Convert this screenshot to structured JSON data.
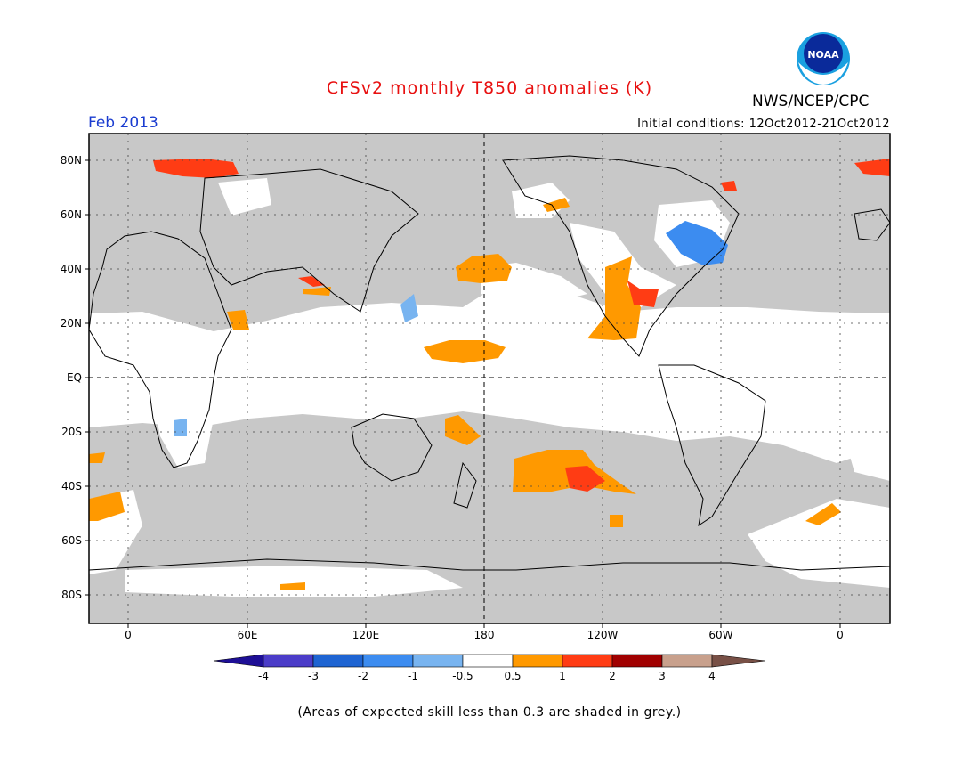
{
  "title": "CFSv2 monthly T850 anomalies (K)",
  "organization": "NWS/NCEP/CPC",
  "logo_text": "NOAA",
  "valid_month": "Feb 2013",
  "initial_conditions": "Initial conditions: 12Oct2012-21Oct2012",
  "footnote": "(Areas of expected skill less than 0.3 are shaded in grey.)",
  "latitude_labels": [
    "80N",
    "60N",
    "40N",
    "20N",
    "EQ",
    "20S",
    "40S",
    "60S",
    "80S"
  ],
  "longitude_labels": [
    "0",
    "60E",
    "120E",
    "180",
    "120W",
    "60W",
    "0"
  ],
  "colorbar": {
    "labels": [
      "-4",
      "-3",
      "-2",
      "-1",
      "-0.5",
      "0.5",
      "1",
      "2",
      "3",
      "4"
    ],
    "colors": [
      "#1e0f96",
      "#4b3cc8",
      "#1e64d2",
      "#3c8cf0",
      "#78b4f0",
      "#ffffff",
      "#ff9900",
      "#ff3c14",
      "#a00000",
      "#c8a08c",
      "#785046"
    ]
  },
  "colors": {
    "low_skill_grey": "#c8c8c8",
    "title_red": "#e81010",
    "month_blue": "#1a3cd0"
  }
}
